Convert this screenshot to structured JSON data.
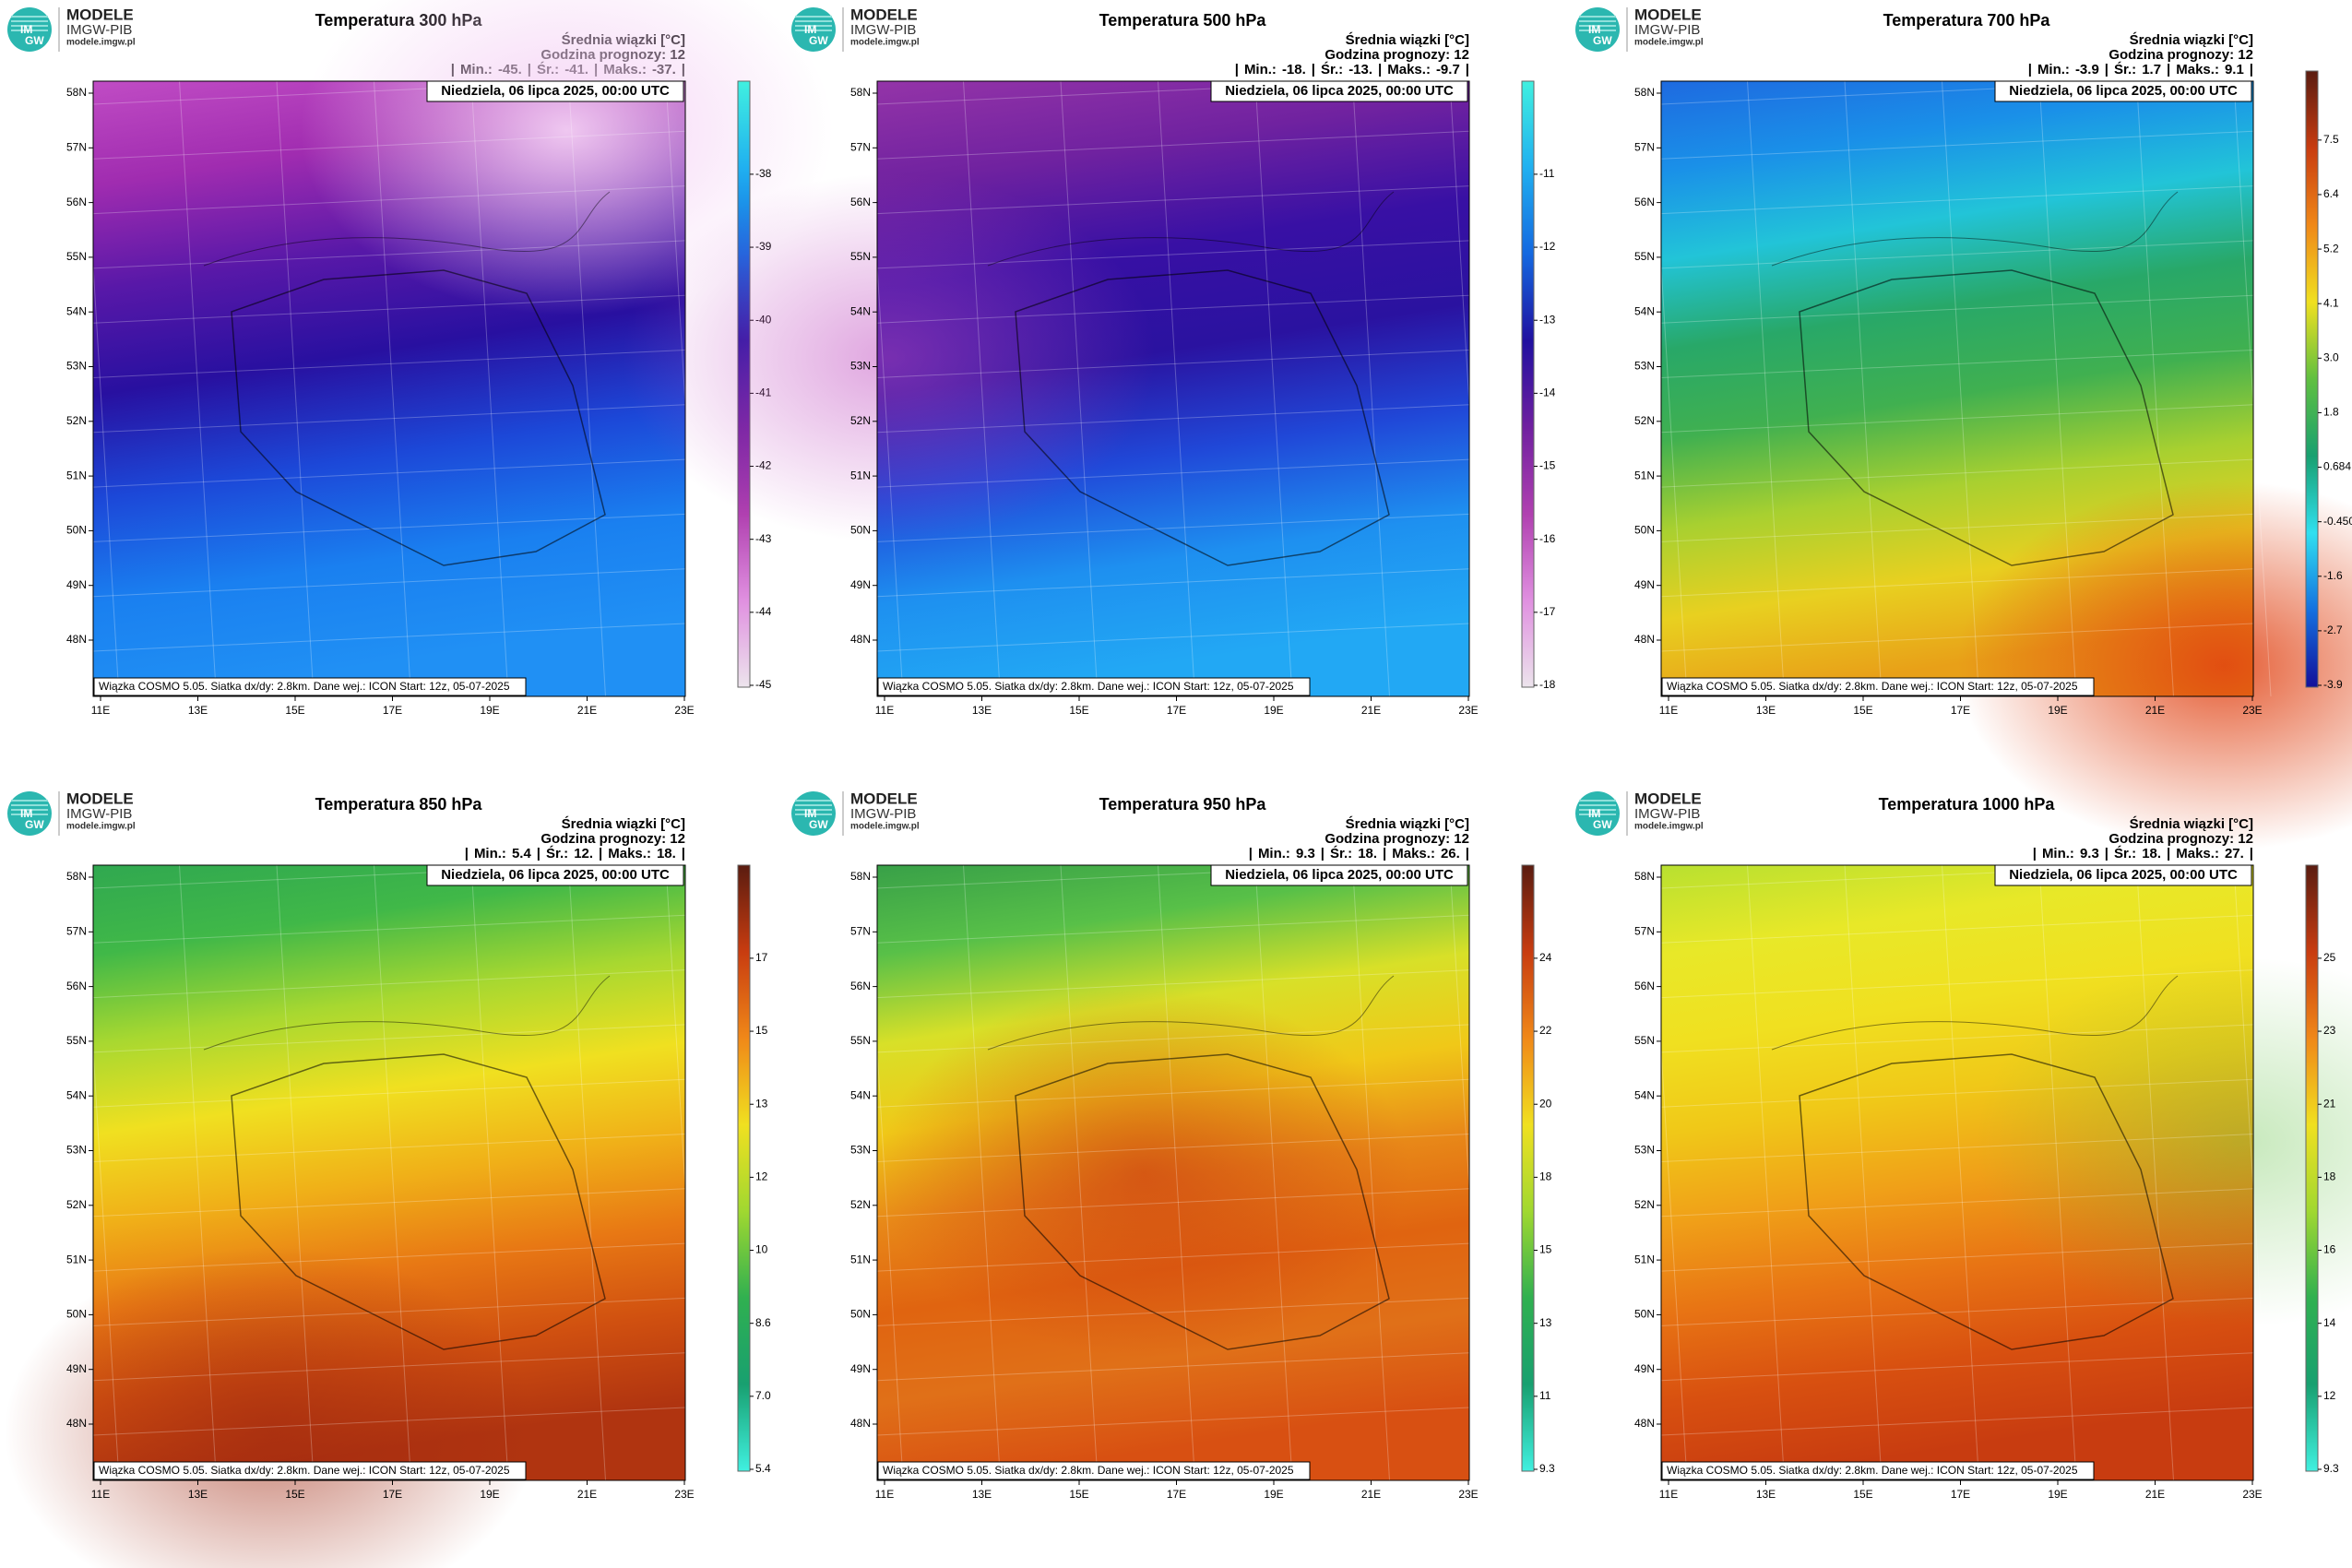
{
  "logo": {
    "letters": [
      "IM",
      "GW"
    ],
    "name": "MODELE",
    "org": "IMGW-PIB",
    "url": "modele.imgw.pl"
  },
  "legend_unit": "Średnia wiązki [°C]",
  "forecast_hour": "Godzina prognozy: 12",
  "separator": "|",
  "stat_labels": {
    "min": "Min.:",
    "mean": "Śr.:",
    "max": "Maks.:"
  },
  "date": "Niedziela, 06 lipca 2025, 00:00 UTC",
  "footer": "Wiązka COSMO 5.05. Siatka dx/dy: 2.8km. Dane wej.: ICON Start: 12z, 05-07-2025",
  "lat_labels": [
    "58N",
    "57N",
    "56N",
    "55N",
    "54N",
    "53N",
    "52N",
    "51N",
    "50N",
    "49N",
    "48N"
  ],
  "lon_labels": [
    "11E",
    "13E",
    "15E",
    "17E",
    "19E",
    "21E",
    "23E"
  ],
  "panels": [
    {
      "title": "Temperatura 300 hPa",
      "min": "-45.",
      "mean": "-41.",
      "max": "-37.",
      "colorbar_ticks": [
        "-38",
        "-39",
        "-40",
        "-41",
        "-42",
        "-43",
        "-44",
        "-45"
      ]
    },
    {
      "title": "Temperatura 500 hPa",
      "min": "-18.",
      "mean": "-13.",
      "max": "-9.7",
      "colorbar_ticks": [
        "-11",
        "-12",
        "-13",
        "-14",
        "-15",
        "-16",
        "-17",
        "-18"
      ]
    },
    {
      "title": "Temperatura 700 hPa",
      "min": "-3.9",
      "mean": "1.7",
      "max": "9.1",
      "colorbar_ticks": [
        "7.5",
        "6.4",
        "5.2",
        "4.1",
        "3.0",
        "1.8",
        "0.684",
        "-0.450",
        "-1.6",
        "-2.7",
        "-3.9"
      ]
    },
    {
      "title": "Temperatura 850 hPa",
      "min": "5.4",
      "mean": "12.",
      "max": "18.",
      "colorbar_ticks": [
        "17",
        "15",
        "13",
        "12",
        "10",
        "8.6",
        "7.0",
        "5.4"
      ]
    },
    {
      "title": "Temperatura 950 hPa",
      "min": "9.3",
      "mean": "18.",
      "max": "26.",
      "colorbar_ticks": [
        "24",
        "22",
        "20",
        "18",
        "15",
        "13",
        "11",
        "9.3"
      ]
    },
    {
      "title": "Temperatura 1000 hPa",
      "min": "9.3",
      "mean": "18.",
      "max": "27.",
      "colorbar_ticks": [
        "25",
        "23",
        "21",
        "18",
        "16",
        "14",
        "12",
        "9.3"
      ]
    }
  ]
}
